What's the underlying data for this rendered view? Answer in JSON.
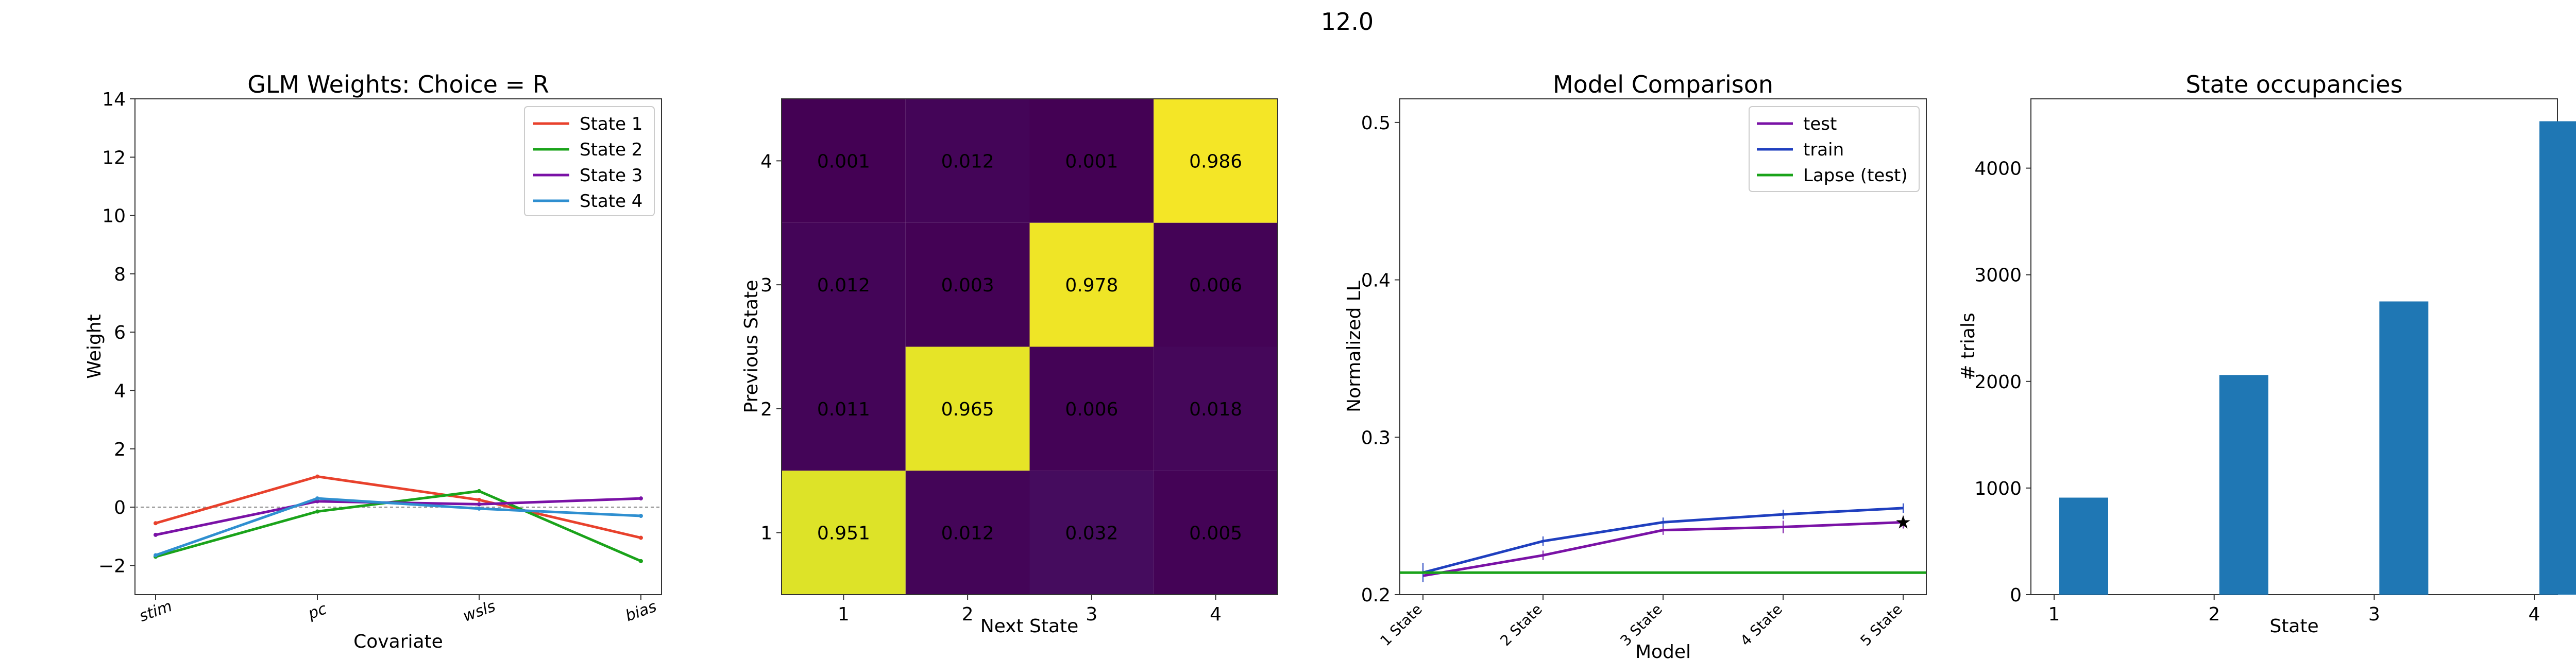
{
  "suptitle": "12.0",
  "chart_data": [
    {
      "type": "line",
      "title": "GLM Weights: Choice = R",
      "xlabel": "Covariate",
      "ylabel": "Weight",
      "categories": [
        "stim",
        "pc",
        "wsls",
        "bias"
      ],
      "ylim": [
        -3,
        14
      ],
      "yticks": [
        -2,
        0,
        2,
        4,
        6,
        8,
        10,
        12,
        14
      ],
      "zero_line": true,
      "legend_position": "top-right",
      "series": [
        {
          "name": "State 1",
          "color": "#e8412c",
          "values": [
            -0.55,
            1.05,
            0.25,
            -1.05
          ]
        },
        {
          "name": "State 2",
          "color": "#1aa31a",
          "values": [
            -1.7,
            -0.15,
            0.55,
            -1.85
          ]
        },
        {
          "name": "State 3",
          "color": "#7a12a6",
          "values": [
            -0.95,
            0.2,
            0.1,
            0.3
          ]
        },
        {
          "name": "State 4",
          "color": "#2f8fd0",
          "values": [
            -1.65,
            0.3,
            -0.05,
            -0.3
          ]
        }
      ]
    },
    {
      "type": "heatmap",
      "xlabel": "Next State",
      "ylabel": "Previous State",
      "x_ticks": [
        "1",
        "2",
        "3",
        "4"
      ],
      "y_ticks": [
        "4",
        "3",
        "2",
        "1"
      ],
      "matrix": [
        [
          "0.001",
          "0.012",
          "0.001",
          "0.986"
        ],
        [
          "0.012",
          "0.003",
          "0.978",
          "0.006"
        ],
        [
          "0.011",
          "0.965",
          "0.006",
          "0.018"
        ],
        [
          "0.951",
          "0.012",
          "0.032",
          "0.005"
        ]
      ],
      "colormap": "viridis",
      "grid": false
    },
    {
      "type": "line",
      "title": "Model Comparison",
      "xlabel": "Model",
      "ylabel": "Normalized LL",
      "categories": [
        "1 State",
        "2 State",
        "3 State",
        "4 State",
        "5 State"
      ],
      "ylim": [
        0.2,
        0.515
      ],
      "yticks": [
        0.2,
        0.3,
        0.4,
        0.5
      ],
      "legend_position": "top-right",
      "best_model_marker": "5 State",
      "series": [
        {
          "name": "test",
          "color": "#7a12a6",
          "values": [
            0.212,
            0.225,
            0.241,
            0.243,
            0.246
          ],
          "err": [
            0.003,
            0.003,
            0.003,
            0.004,
            0.004
          ]
        },
        {
          "name": "train",
          "color": "#1f3fbf",
          "values": [
            0.214,
            0.234,
            0.246,
            0.251,
            0.255
          ],
          "err": [
            0.006,
            0.003,
            0.003,
            0.003,
            0.003
          ]
        },
        {
          "name": "Lapse (test)",
          "color": "#1aa31a",
          "values": [
            0.214,
            0.214,
            0.214,
            0.214,
            0.214
          ]
        }
      ]
    },
    {
      "type": "bar",
      "title": "State occupancies",
      "xlabel": "State",
      "ylabel": "# trials",
      "categories": [
        "1",
        "2",
        "3",
        "4"
      ],
      "values": [
        910,
        2060,
        2750,
        4440
      ],
      "color": "#1f77b4",
      "ylim": [
        0,
        4650
      ],
      "yticks": [
        0,
        1000,
        2000,
        3000,
        4000
      ]
    }
  ]
}
